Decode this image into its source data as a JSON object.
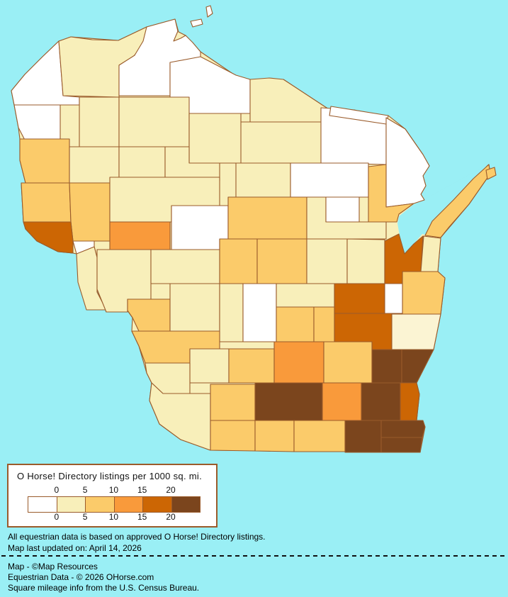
{
  "window": {
    "water_color": "#9AEFF5",
    "county_border_color": "#9A5B2B"
  },
  "legend": {
    "title": "O Horse! Directory listings per 1000 sq. mi.",
    "ticks": [
      "0",
      "5",
      "10",
      "15",
      "20"
    ],
    "bin_colors": [
      "#FFFFFF",
      "#F8EFBA",
      "#FBCB6A",
      "#F99A3B",
      "#CC6604",
      "#7B451D"
    ],
    "border_color": "#9A5B2B"
  },
  "notes": {
    "line1": "All equestrian data is based on approved O Horse! Directory listings.",
    "line2": "Map last updated on: April 14, 2026"
  },
  "credits": {
    "line1": "Map - ©Map Resources",
    "line2": "Equestrian Data - © 2026 OHorse.com",
    "line3": "Square mileage info from the U.S. Census Bureau."
  },
  "chart_data": {
    "type": "choropleth",
    "region": "Wisconsin counties",
    "metric": "O Horse! Directory listings per 1000 sq. mi.",
    "bins": [
      "0",
      "0-5",
      "5-10",
      "10-15",
      "15-20",
      "20+"
    ],
    "bin_colors": [
      "#FFFFFF",
      "#F8EFBA",
      "#FBCB6A",
      "#F99A3B",
      "#CC6604",
      "#7B451D"
    ],
    "counties": [
      {
        "id": "douglas",
        "name": "Douglas",
        "bin": 0
      },
      {
        "id": "bayfield",
        "name": "Bayfield",
        "bin": 1
      },
      {
        "id": "ashland",
        "name": "Ashland",
        "bin": 0
      },
      {
        "id": "iron",
        "name": "Iron",
        "bin": 0
      },
      {
        "id": "vilas",
        "name": "Vilas",
        "bin": 1
      },
      {
        "id": "oneida",
        "name": "Oneida",
        "bin": 1
      },
      {
        "id": "forest",
        "name": "Forest",
        "bin": 0
      },
      {
        "id": "florence",
        "name": "Florence",
        "bin": 0
      },
      {
        "id": "marinette",
        "name": "Marinette",
        "bin": 0
      },
      {
        "id": "burnett",
        "name": "Burnett",
        "bin": 0
      },
      {
        "id": "washburn",
        "name": "Washburn",
        "bin": 1
      },
      {
        "id": "sawyer",
        "name": "Sawyer",
        "bin": 1
      },
      {
        "id": "price",
        "name": "Price",
        "bin": 1
      },
      {
        "id": "polk",
        "name": "Polk",
        "bin": 2
      },
      {
        "id": "barron",
        "name": "Barron",
        "bin": 1
      },
      {
        "id": "rusk",
        "name": "Rusk",
        "bin": 1
      },
      {
        "id": "taylor",
        "name": "Taylor",
        "bin": 1
      },
      {
        "id": "lincoln",
        "name": "Lincoln",
        "bin": 1
      },
      {
        "id": "langlade",
        "name": "Langlade",
        "bin": 0
      },
      {
        "id": "stcroix",
        "name": "St. Croix",
        "bin": 2
      },
      {
        "id": "dunn",
        "name": "Dunn",
        "bin": 2
      },
      {
        "id": "chippewa",
        "name": "Chippewa",
        "bin": 1
      },
      {
        "id": "clark",
        "name": "Clark",
        "bin": 0
      },
      {
        "id": "marathon",
        "name": "Marathon",
        "bin": 2
      },
      {
        "id": "shawano",
        "name": "Shawano",
        "bin": 1
      },
      {
        "id": "menominee",
        "name": "Menominee",
        "bin": 0
      },
      {
        "id": "oconto",
        "name": "Oconto",
        "bin": 2
      },
      {
        "id": "door",
        "name": "Door",
        "bin": 2
      },
      {
        "id": "washington-island",
        "name": "Washington Island (Door)",
        "bin": 2
      },
      {
        "id": "apostle-island-1",
        "name": "Apostle Island",
        "bin": 0
      },
      {
        "id": "apostle-island-2",
        "name": "Apostle Island",
        "bin": 0
      },
      {
        "id": "pierce",
        "name": "Pierce",
        "bin": 4
      },
      {
        "id": "pepin",
        "name": "Pepin",
        "bin": 0
      },
      {
        "id": "eauclaire",
        "name": "Eau Claire",
        "bin": 3
      },
      {
        "id": "buffalo",
        "name": "Buffalo",
        "bin": 1
      },
      {
        "id": "trempealeau",
        "name": "Trempealeau",
        "bin": 1
      },
      {
        "id": "jackson",
        "name": "Jackson",
        "bin": 1
      },
      {
        "id": "wood",
        "name": "Wood",
        "bin": 2
      },
      {
        "id": "portage",
        "name": "Portage",
        "bin": 2
      },
      {
        "id": "waupaca",
        "name": "Waupaca",
        "bin": 1
      },
      {
        "id": "outagamie",
        "name": "Outagamie",
        "bin": 1
      },
      {
        "id": "brown",
        "name": "Brown",
        "bin": 4
      },
      {
        "id": "kewaunee",
        "name": "Kewaunee",
        "bin": 1
      },
      {
        "id": "manitowoc",
        "name": "Manitowoc",
        "bin": 2
      },
      {
        "id": "lacrosse",
        "name": "La Crosse",
        "bin": 2
      },
      {
        "id": "monroe",
        "name": "Monroe",
        "bin": 1
      },
      {
        "id": "juneau",
        "name": "Juneau",
        "bin": 1
      },
      {
        "id": "adams",
        "name": "Adams",
        "bin": 0
      },
      {
        "id": "waushara",
        "name": "Waushara",
        "bin": 1
      },
      {
        "id": "marquette",
        "name": "Marquette",
        "bin": 2
      },
      {
        "id": "greenlake",
        "name": "Green Lake",
        "bin": 2
      },
      {
        "id": "winnebago",
        "name": "Winnebago",
        "bin": 4
      },
      {
        "id": "calumet",
        "name": "Calumet",
        "bin": 0
      },
      {
        "id": "fonddulac",
        "name": "Fond du Lac",
        "bin": 4
      },
      {
        "id": "sheboygan",
        "name": "Sheboygan",
        "bin": 1,
        "color": "#FBF4D3"
      },
      {
        "id": "vernon",
        "name": "Vernon",
        "bin": 2
      },
      {
        "id": "richland",
        "name": "Richland",
        "bin": 1
      },
      {
        "id": "sauk",
        "name": "Sauk",
        "bin": 2
      },
      {
        "id": "columbia",
        "name": "Columbia",
        "bin": 3
      },
      {
        "id": "dodge",
        "name": "Dodge",
        "bin": 2
      },
      {
        "id": "washington",
        "name": "Washington",
        "bin": 5
      },
      {
        "id": "ozaukee",
        "name": "Ozaukee",
        "bin": 5
      },
      {
        "id": "crawford",
        "name": "Crawford",
        "bin": 1
      },
      {
        "id": "grant",
        "name": "Grant",
        "bin": 1
      },
      {
        "id": "iowa",
        "name": "Iowa",
        "bin": 2
      },
      {
        "id": "lafayette",
        "name": "Lafayette",
        "bin": 2
      },
      {
        "id": "green",
        "name": "Green",
        "bin": 2
      },
      {
        "id": "rock",
        "name": "Rock",
        "bin": 2
      },
      {
        "id": "dane",
        "name": "Dane",
        "bin": 5
      },
      {
        "id": "jefferson",
        "name": "Jefferson",
        "bin": 3
      },
      {
        "id": "waukesha",
        "name": "Waukesha",
        "bin": 5
      },
      {
        "id": "milwaukee",
        "name": "Milwaukee",
        "bin": 4
      },
      {
        "id": "walworth",
        "name": "Walworth",
        "bin": 5
      },
      {
        "id": "racine",
        "name": "Racine",
        "bin": 5
      },
      {
        "id": "kenosha",
        "name": "Kenosha",
        "bin": 5
      }
    ]
  }
}
